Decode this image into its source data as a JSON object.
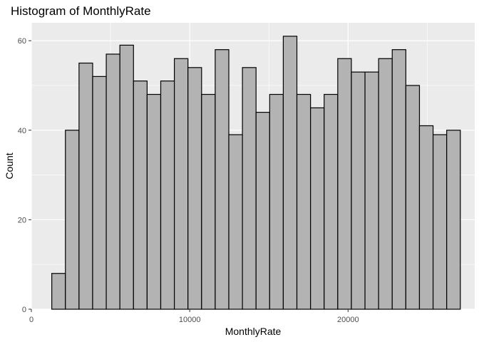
{
  "chart_data": {
    "type": "bar",
    "subtype": "histogram",
    "title": "Histogram of MonthlyRate",
    "xlabel": "MonthlyRate",
    "ylabel": "Count",
    "xlim": [
      0,
      28000
    ],
    "ylim": [
      0,
      64
    ],
    "x_ticks": [
      0,
      10000,
      20000
    ],
    "x_tick_labels": [
      "0",
      "10000",
      "20000"
    ],
    "y_ticks": [
      0,
      20,
      40,
      60
    ],
    "y_tick_labels": [
      "0",
      "20",
      "40",
      "60"
    ],
    "grid": true,
    "legend": "none",
    "bin_start": 1290,
    "bin_width": 860,
    "values": [
      8,
      40,
      55,
      52,
      57,
      59,
      51,
      48,
      51,
      56,
      54,
      48,
      58,
      39,
      54,
      44,
      48,
      61,
      48,
      45,
      48,
      56,
      53,
      53,
      56,
      58,
      50,
      41,
      39,
      40
    ],
    "colors": {
      "bar_fill": "#b3b3b3",
      "bar_stroke": "#000000",
      "panel_background": "#ebebeb",
      "grid": "#ffffff"
    }
  }
}
